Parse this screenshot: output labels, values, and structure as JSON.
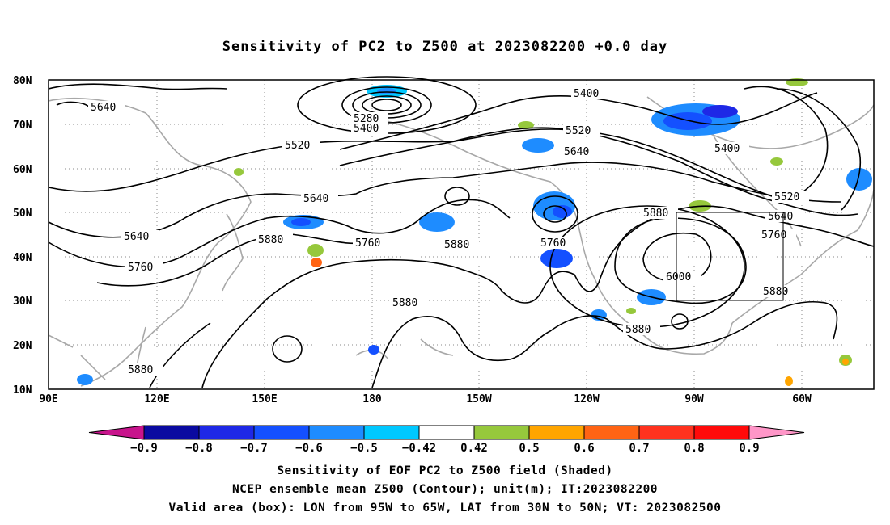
{
  "title": "Sensitivity of PC2 to Z500 at 2023082200 +0.0 day",
  "lon_labels": [
    "90E",
    "120E",
    "150E",
    "180",
    "150W",
    "120W",
    "90W",
    "60W"
  ],
  "lat_labels": [
    "80N",
    "70N",
    "60N",
    "50N",
    "40N",
    "30N",
    "20N",
    "10N"
  ],
  "contour_labels": [
    "5640",
    "5640",
    "5760",
    "5880",
    "5640",
    "5760",
    "5880",
    "5280",
    "5400",
    "5520",
    "5400",
    "5520",
    "5640",
    "5880",
    "5760",
    "5880",
    "5400",
    "5520",
    "5640",
    "5760",
    "5880",
    "6000",
    "5880",
    "5880"
  ],
  "valid_box": {
    "lon_west": -95,
    "lon_east": -65,
    "lat_south": 30,
    "lat_north": 50
  },
  "colorbar": {
    "labels": [
      "-0.9",
      "-0.8",
      "-0.7",
      "-0.6",
      "-0.5",
      "-0.42",
      "0.42",
      "0.5",
      "0.6",
      "0.7",
      "0.8",
      "0.9"
    ],
    "colors": [
      "#c8148c",
      "#0a0aa0",
      "#1e28e6",
      "#1450ff",
      "#1e8cff",
      "#00c8ff",
      "#ffffff",
      "#96c83c",
      "#ffa500",
      "#ff6414",
      "#ff321e",
      "#ff0a0a",
      "#ff96c8"
    ]
  },
  "caption_1": "Sensitivity of EOF PC2 to Z500 field (Shaded)",
  "caption_2": "NCEP ensemble mean Z500 (Contour); unit(m); IT:2023082200",
  "caption_3": "Valid area (box): LON from 95W to 65W, LAT from 30N to 50N; VT: 2023082500"
}
